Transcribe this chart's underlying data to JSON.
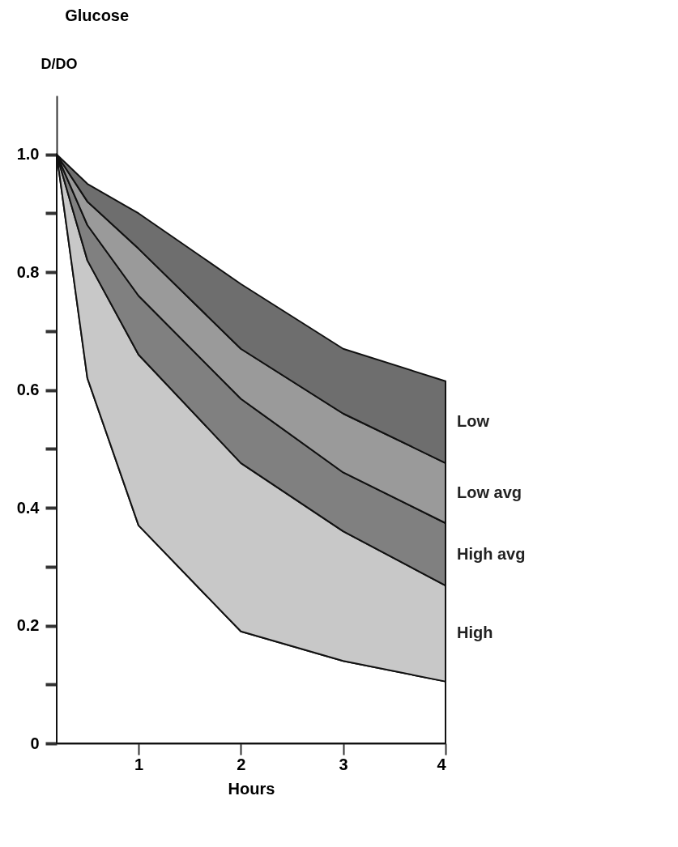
{
  "chart_data": {
    "type": "area",
    "title": "Glucose",
    "xlabel": "Hours",
    "ylabel": "D/DO",
    "stacked": true,
    "x": [
      0.2,
      0.5,
      1,
      2,
      3,
      4
    ],
    "series": [
      {
        "color": "#ffffff",
        "values": [
          1.0,
          0.62,
          0.37,
          0.19,
          0.14,
          0.105
        ]
      },
      {
        "name": "High",
        "color": "#c8c8c8",
        "values": [
          0,
          0.2,
          0.29,
          0.286,
          0.22,
          0.163
        ]
      },
      {
        "name": "High avg",
        "color": "#808080",
        "values": [
          0,
          0.06,
          0.1,
          0.109,
          0.1,
          0.106
        ]
      },
      {
        "name": "Low avg",
        "color": "#9a9a9a",
        "values": [
          0,
          0.04,
          0.08,
          0.085,
          0.1,
          0.102
        ]
      },
      {
        "name": "Low",
        "color": "#6e6e6e",
        "values": [
          0,
          0.03,
          0.06,
          0.11,
          0.11,
          0.139
        ]
      }
    ],
    "xlim": [
      0.2,
      4
    ],
    "xticks": [
      1,
      2,
      3,
      4
    ],
    "ylim": [
      0,
      1.1
    ],
    "yticks": [
      0,
      {
        "value": 0.1,
        "label": null
      },
      0.2,
      {
        "value": 0.3,
        "label": null
      },
      0.4,
      {
        "value": 0.5,
        "label": null
      },
      0.6,
      {
        "value": 0.7,
        "label": null
      },
      0.8,
      {
        "value": 0.9,
        "label": null
      },
      {
        "value": 1,
        "label": "1.0"
      }
    ],
    "grid": false,
    "legend": false
  }
}
